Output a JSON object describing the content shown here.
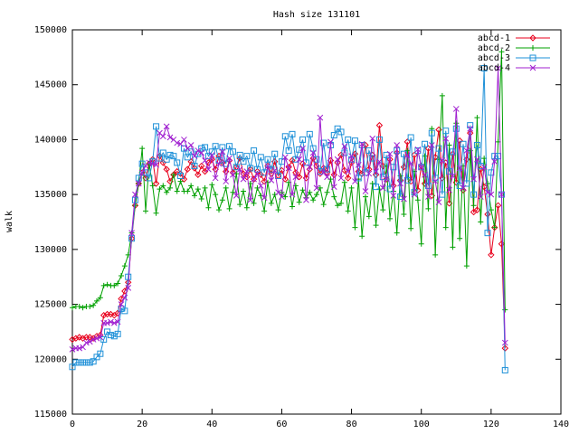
{
  "chart_data": {
    "type": "line",
    "title": "Hash size 131101",
    "y_label": "walk",
    "legend": "top-right",
    "grid": false,
    "xlim": [
      0,
      140
    ],
    "xticks": [
      0,
      20,
      40,
      60,
      80,
      100,
      120,
      140
    ],
    "ylim": [
      115000,
      150000
    ],
    "yticks": [
      115000,
      120000,
      125000,
      130000,
      135000,
      140000,
      145000,
      150000
    ],
    "x": [
      0,
      1,
      2,
      3,
      4,
      5,
      6,
      7,
      8,
      9,
      10,
      11,
      12,
      13,
      14,
      15,
      16,
      17,
      18,
      19,
      20,
      21,
      22,
      23,
      24,
      25,
      26,
      27,
      28,
      29,
      30,
      31,
      32,
      33,
      34,
      35,
      36,
      37,
      38,
      39,
      40,
      41,
      42,
      43,
      44,
      45,
      46,
      47,
      48,
      49,
      50,
      51,
      52,
      53,
      54,
      55,
      56,
      57,
      58,
      59,
      60,
      61,
      62,
      63,
      64,
      65,
      66,
      67,
      68,
      69,
      70,
      71,
      72,
      73,
      74,
      75,
      76,
      77,
      78,
      79,
      80,
      81,
      82,
      83,
      84,
      85,
      86,
      87,
      88,
      89,
      90,
      91,
      92,
      93,
      94,
      95,
      96,
      97,
      98,
      99,
      100,
      101,
      102,
      103,
      104,
      105,
      106,
      107,
      108,
      109,
      110,
      111,
      112,
      113,
      114,
      115,
      116,
      117,
      118,
      119,
      120,
      121,
      122,
      123,
      124
    ],
    "series": [
      {
        "name": "abcd-1",
        "color": "#e8001c",
        "marker": "diamond",
        "values": [
          121800,
          121900,
          122000,
          121900,
          122000,
          122000,
          121900,
          122100,
          122200,
          124000,
          124100,
          124100,
          124000,
          124200,
          125500,
          126200,
          127000,
          131000,
          134000,
          136000,
          137000,
          136500,
          137800,
          138200,
          136000,
          138500,
          137900,
          137300,
          136200,
          136800,
          137100,
          136900,
          136400,
          137300,
          138000,
          137400,
          136800,
          137600,
          137100,
          137900,
          138200,
          137300,
          138500,
          137900,
          137100,
          138100,
          137000,
          137500,
          138300,
          136900,
          136600,
          137300,
          136400,
          137100,
          136800,
          136200,
          137600,
          136900,
          138000,
          136700,
          137200,
          136400,
          137500,
          138100,
          137000,
          136600,
          137800,
          136500,
          137300,
          138300,
          137600,
          136900,
          137400,
          137000,
          138100,
          136800,
          137900,
          138600,
          137200,
          136500,
          137900,
          138700,
          137100,
          136900,
          139500,
          137300,
          138600,
          136800,
          141300,
          137600,
          136400,
          138200,
          135800,
          138800,
          136300,
          137500,
          139800,
          136200,
          138600,
          135400,
          137600,
          136000,
          139200,
          134900,
          138400,
          140900,
          136500,
          137900,
          134200,
          138700,
          136100,
          139900,
          135400,
          138200,
          140600,
          133400,
          133600,
          137300,
          135700,
          133200,
          129500,
          132000,
          134000,
          130500,
          121000
        ]
      },
      {
        "name": "abcd-2",
        "color": "#00a000",
        "marker": "plus",
        "values": [
          124700,
          124800,
          124800,
          124700,
          124800,
          124800,
          124900,
          125300,
          125600,
          126700,
          126800,
          126700,
          126700,
          126900,
          127600,
          128500,
          129500,
          131500,
          134000,
          136000,
          139200,
          133500,
          137800,
          135800,
          133300,
          135500,
          135800,
          135200,
          135600,
          136800,
          135300,
          136200,
          135300,
          135300,
          135800,
          134900,
          135500,
          134600,
          135600,
          133800,
          135900,
          135000,
          133600,
          134500,
          135600,
          133700,
          135200,
          136900,
          134100,
          135300,
          133800,
          136000,
          134200,
          135600,
          134900,
          133500,
          136100,
          134200,
          135000,
          133600,
          135200,
          134800,
          136100,
          133900,
          135800,
          134300,
          135400,
          134700,
          135200,
          134500,
          135000,
          135600,
          134100,
          135200,
          136400,
          134800,
          134000,
          134200,
          136100,
          133500,
          135600,
          132000,
          136400,
          131200,
          134800,
          133000,
          136000,
          132200,
          135500,
          133600,
          137600,
          132800,
          135300,
          131500,
          136700,
          133200,
          139000,
          131900,
          137100,
          134500,
          130500,
          138500,
          133700,
          141000,
          129500,
          138200,
          144000,
          132000,
          139500,
          130200,
          141500,
          131000,
          137600,
          128500,
          139000,
          134000,
          142000,
          132500,
          138300,
          136000,
          133600,
          132000,
          139800,
          148000,
          124500
        ]
      },
      {
        "name": "abcd-3",
        "color": "#1e90d8",
        "marker": "square",
        "values": [
          119300,
          119700,
          119700,
          119700,
          119700,
          119700,
          119800,
          120200,
          120500,
          121800,
          122500,
          122200,
          122100,
          122300,
          124600,
          124400,
          127500,
          131000,
          134500,
          136500,
          137800,
          137000,
          136500,
          138000,
          141200,
          138300,
          138800,
          138200,
          138600,
          138500,
          137900,
          136700,
          139200,
          138400,
          138900,
          137600,
          138700,
          139200,
          139300,
          138500,
          138900,
          139400,
          138100,
          139300,
          137800,
          139400,
          138900,
          137500,
          138600,
          138000,
          138500,
          137400,
          139000,
          137300,
          138400,
          137000,
          138200,
          137300,
          138700,
          136700,
          138000,
          140300,
          139000,
          140500,
          138200,
          139100,
          140000,
          137900,
          140500,
          139200,
          138200,
          137100,
          139700,
          137300,
          139500,
          140400,
          141000,
          140700,
          138800,
          140000,
          138200,
          139900,
          136500,
          139500,
          137000,
          139000,
          138300,
          135700,
          140000,
          136600,
          138600,
          135500,
          137500,
          139000,
          134800,
          138700,
          136300,
          140200,
          135200,
          139000,
          137500,
          139600,
          135800,
          140600,
          136500,
          139200,
          135000,
          140800,
          137100,
          138900,
          141000,
          135800,
          139600,
          136000,
          141300,
          135000,
          139500,
          137600,
          146500,
          131500,
          137000,
          138500,
          138500,
          135000,
          119000
        ]
      },
      {
        "name": "abcd-4",
        "color": "#a020d0",
        "marker": "cross",
        "values": [
          120900,
          121000,
          121000,
          121100,
          121500,
          121600,
          121800,
          121900,
          122000,
          123300,
          123300,
          123400,
          123300,
          123400,
          125000,
          125600,
          126500,
          131500,
          135000,
          136000,
          137000,
          137600,
          137900,
          137800,
          137700,
          140600,
          140300,
          141200,
          140200,
          140000,
          139700,
          139600,
          140000,
          139200,
          139500,
          138500,
          139000,
          138800,
          138100,
          137300,
          138600,
          136500,
          137800,
          138900,
          136200,
          138300,
          136800,
          134900,
          137300,
          136400,
          137100,
          134500,
          136400,
          136900,
          135800,
          134700,
          137600,
          136300,
          137200,
          135200,
          134800,
          138400,
          137400,
          135000,
          136600,
          138200,
          139200,
          134500,
          137500,
          138800,
          135600,
          142000,
          137000,
          136600,
          139800,
          135700,
          138200,
          136500,
          139400,
          137100,
          138500,
          136200,
          137700,
          139600,
          135300,
          136900,
          140100,
          137100,
          138000,
          135600,
          136400,
          138700,
          134900,
          139500,
          136000,
          134600,
          138600,
          137800,
          135000,
          139100,
          137500,
          136800,
          134800,
          139500,
          136200,
          134300,
          138100,
          140100,
          135400,
          136700,
          142800,
          137400,
          135600,
          139000,
          141000,
          136400,
          138200,
          134800,
          137500,
          135200,
          135000,
          138000,
          146500,
          135000,
          121500
        ]
      }
    ]
  }
}
